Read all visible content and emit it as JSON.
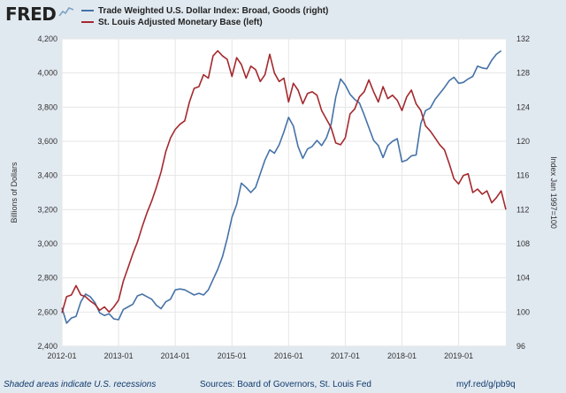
{
  "header": {
    "logo_text": "FRED",
    "logo_icon": "trend-line-icon"
  },
  "footer": {
    "note": "Shaded areas indicate U.S. recessions",
    "sources": "Sources: Board of Governors, St. Louis Fed",
    "link": "myf.red/g/pb9q"
  },
  "chart_data": {
    "type": "line",
    "xlabel": "",
    "ylabel_left": "Billions of Dollars",
    "ylabel_right": "Index Jan 1997=100",
    "x_ticks": [
      "2012-01",
      "2013-01",
      "2014-01",
      "2015-01",
      "2016-01",
      "2017-01",
      "2018-01",
      "2019-01"
    ],
    "xlim": [
      "2012-01",
      "2019-11"
    ],
    "ylim_left": [
      2400,
      4200
    ],
    "ylim_right": [
      96,
      132
    ],
    "yticks_left": [
      "2,400",
      "2,600",
      "2,800",
      "3,000",
      "3,200",
      "3,400",
      "3,600",
      "3,800",
      "4,000",
      "4,200"
    ],
    "yticks_right": [
      "96",
      "100",
      "104",
      "108",
      "112",
      "116",
      "120",
      "124",
      "128",
      "132"
    ],
    "grid": true,
    "legend_position": "top",
    "series": [
      {
        "name": "Trade Weighted U.S. Dollar Index: Broad, Goods (right)",
        "axis": "right",
        "color": "#4572a7",
        "points": [
          [
            "2012-01",
            100.5
          ],
          [
            "2012-02",
            98.7
          ],
          [
            "2012-03",
            99.3
          ],
          [
            "2012-04",
            99.5
          ],
          [
            "2012-05",
            101.2
          ],
          [
            "2012-06",
            102.1
          ],
          [
            "2012-07",
            101.8
          ],
          [
            "2012-08",
            101.1
          ],
          [
            "2012-09",
            99.9
          ],
          [
            "2012-10",
            99.6
          ],
          [
            "2012-11",
            99.8
          ],
          [
            "2012-12",
            99.2
          ],
          [
            "2013-01",
            99.1
          ],
          [
            "2013-02",
            100.3
          ],
          [
            "2013-03",
            100.6
          ],
          [
            "2013-04",
            100.9
          ],
          [
            "2013-05",
            101.9
          ],
          [
            "2013-06",
            102.1
          ],
          [
            "2013-07",
            101.8
          ],
          [
            "2013-08",
            101.5
          ],
          [
            "2013-09",
            100.8
          ],
          [
            "2013-10",
            100.4
          ],
          [
            "2013-11",
            101.2
          ],
          [
            "2013-12",
            101.5
          ],
          [
            "2014-01",
            102.6
          ],
          [
            "2014-02",
            102.7
          ],
          [
            "2014-03",
            102.6
          ],
          [
            "2014-04",
            102.3
          ],
          [
            "2014-05",
            102.0
          ],
          [
            "2014-06",
            102.2
          ],
          [
            "2014-07",
            102.0
          ],
          [
            "2014-08",
            102.6
          ],
          [
            "2014-09",
            103.8
          ],
          [
            "2014-10",
            105.0
          ],
          [
            "2014-11",
            106.5
          ],
          [
            "2014-12",
            108.6
          ],
          [
            "2015-01",
            111.1
          ],
          [
            "2015-02",
            112.6
          ],
          [
            "2015-03",
            115.1
          ],
          [
            "2015-04",
            114.6
          ],
          [
            "2015-05",
            114.0
          ],
          [
            "2015-06",
            114.6
          ],
          [
            "2015-07",
            116.2
          ],
          [
            "2015-08",
            117.8
          ],
          [
            "2015-09",
            119.0
          ],
          [
            "2015-10",
            118.6
          ],
          [
            "2015-11",
            119.6
          ],
          [
            "2015-12",
            121.1
          ],
          [
            "2016-01",
            122.8
          ],
          [
            "2016-02",
            121.8
          ],
          [
            "2016-03",
            119.4
          ],
          [
            "2016-04",
            118.0
          ],
          [
            "2016-05",
            119.1
          ],
          [
            "2016-06",
            119.4
          ],
          [
            "2016-07",
            120.1
          ],
          [
            "2016-08",
            119.5
          ],
          [
            "2016-09",
            120.4
          ],
          [
            "2016-10",
            122.0
          ],
          [
            "2016-11",
            125.2
          ],
          [
            "2016-12",
            127.3
          ],
          [
            "2017-01",
            126.6
          ],
          [
            "2017-02",
            125.5
          ],
          [
            "2017-03",
            124.9
          ],
          [
            "2017-04",
            124.5
          ],
          [
            "2017-05",
            123.1
          ],
          [
            "2017-06",
            121.6
          ],
          [
            "2017-07",
            120.1
          ],
          [
            "2017-08",
            119.5
          ],
          [
            "2017-09",
            118.1
          ],
          [
            "2017-10",
            119.5
          ],
          [
            "2017-11",
            120.0
          ],
          [
            "2017-12",
            120.3
          ],
          [
            "2018-01",
            117.6
          ],
          [
            "2018-02",
            117.8
          ],
          [
            "2018-03",
            118.3
          ],
          [
            "2018-04",
            118.4
          ],
          [
            "2018-05",
            122.1
          ],
          [
            "2018-06",
            123.6
          ],
          [
            "2018-07",
            123.9
          ],
          [
            "2018-08",
            124.9
          ],
          [
            "2018-09",
            125.6
          ],
          [
            "2018-10",
            126.3
          ],
          [
            "2018-11",
            127.1
          ],
          [
            "2018-12",
            127.5
          ],
          [
            "2019-01",
            126.8
          ],
          [
            "2019-02",
            126.9
          ],
          [
            "2019-03",
            127.3
          ],
          [
            "2019-04",
            127.6
          ],
          [
            "2019-05",
            128.8
          ],
          [
            "2019-06",
            128.6
          ],
          [
            "2019-07",
            128.5
          ],
          [
            "2019-08",
            129.5
          ],
          [
            "2019-09",
            130.2
          ],
          [
            "2019-10",
            130.6
          ]
        ]
      },
      {
        "name": "St. Louis Adjusted Monetary Base (left)",
        "axis": "left",
        "color": "#a4292e",
        "points": [
          [
            "2012-01",
            2595
          ],
          [
            "2012-02",
            2690
          ],
          [
            "2012-03",
            2700
          ],
          [
            "2012-04",
            2755
          ],
          [
            "2012-05",
            2700
          ],
          [
            "2012-06",
            2690
          ],
          [
            "2012-07",
            2665
          ],
          [
            "2012-08",
            2645
          ],
          [
            "2012-09",
            2610
          ],
          [
            "2012-10",
            2630
          ],
          [
            "2012-11",
            2600
          ],
          [
            "2012-12",
            2630
          ],
          [
            "2013-01",
            2670
          ],
          [
            "2013-02",
            2780
          ],
          [
            "2013-03",
            2860
          ],
          [
            "2013-04",
            2940
          ],
          [
            "2013-05",
            3010
          ],
          [
            "2013-06",
            3100
          ],
          [
            "2013-07",
            3180
          ],
          [
            "2013-08",
            3250
          ],
          [
            "2013-09",
            3330
          ],
          [
            "2013-10",
            3420
          ],
          [
            "2013-11",
            3540
          ],
          [
            "2013-12",
            3620
          ],
          [
            "2014-01",
            3670
          ],
          [
            "2014-02",
            3700
          ],
          [
            "2014-03",
            3720
          ],
          [
            "2014-04",
            3830
          ],
          [
            "2014-05",
            3910
          ],
          [
            "2014-06",
            3920
          ],
          [
            "2014-07",
            3990
          ],
          [
            "2014-08",
            3970
          ],
          [
            "2014-09",
            4100
          ],
          [
            "2014-10",
            4130
          ],
          [
            "2014-11",
            4100
          ],
          [
            "2014-12",
            4080
          ],
          [
            "2015-01",
            3980
          ],
          [
            "2015-02",
            4090
          ],
          [
            "2015-03",
            4050
          ],
          [
            "2015-04",
            3970
          ],
          [
            "2015-05",
            4040
          ],
          [
            "2015-06",
            4020
          ],
          [
            "2015-07",
            3950
          ],
          [
            "2015-08",
            3990
          ],
          [
            "2015-09",
            4110
          ],
          [
            "2015-10",
            4000
          ],
          [
            "2015-11",
            3950
          ],
          [
            "2015-12",
            3970
          ],
          [
            "2016-01",
            3830
          ],
          [
            "2016-02",
            3940
          ],
          [
            "2016-03",
            3900
          ],
          [
            "2016-04",
            3820
          ],
          [
            "2016-05",
            3880
          ],
          [
            "2016-06",
            3890
          ],
          [
            "2016-07",
            3870
          ],
          [
            "2016-08",
            3780
          ],
          [
            "2016-09",
            3730
          ],
          [
            "2016-10",
            3680
          ],
          [
            "2016-11",
            3590
          ],
          [
            "2016-12",
            3580
          ],
          [
            "2017-01",
            3620
          ],
          [
            "2017-02",
            3760
          ],
          [
            "2017-03",
            3790
          ],
          [
            "2017-04",
            3860
          ],
          [
            "2017-05",
            3890
          ],
          [
            "2017-06",
            3960
          ],
          [
            "2017-07",
            3890
          ],
          [
            "2017-08",
            3830
          ],
          [
            "2017-09",
            3920
          ],
          [
            "2017-10",
            3850
          ],
          [
            "2017-11",
            3870
          ],
          [
            "2017-12",
            3840
          ],
          [
            "2018-01",
            3780
          ],
          [
            "2018-02",
            3860
          ],
          [
            "2018-03",
            3900
          ],
          [
            "2018-04",
            3820
          ],
          [
            "2018-05",
            3780
          ],
          [
            "2018-06",
            3690
          ],
          [
            "2018-07",
            3660
          ],
          [
            "2018-08",
            3620
          ],
          [
            "2018-09",
            3580
          ],
          [
            "2018-10",
            3550
          ],
          [
            "2018-11",
            3470
          ],
          [
            "2018-12",
            3380
          ],
          [
            "2019-01",
            3350
          ],
          [
            "2019-02",
            3400
          ],
          [
            "2019-03",
            3410
          ],
          [
            "2019-04",
            3300
          ],
          [
            "2019-05",
            3320
          ],
          [
            "2019-06",
            3290
          ],
          [
            "2019-07",
            3310
          ],
          [
            "2019-08",
            3240
          ],
          [
            "2019-09",
            3270
          ],
          [
            "2019-10",
            3310
          ],
          [
            "2019-11",
            3200
          ]
        ]
      }
    ]
  }
}
